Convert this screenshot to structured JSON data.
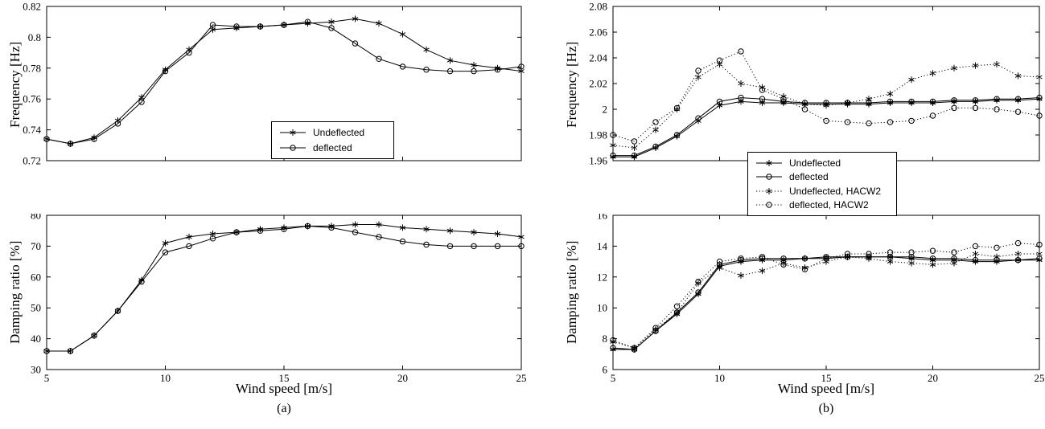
{
  "figure": {
    "caption_a": "(a)",
    "caption_b": "(b)"
  },
  "legends": {
    "a": {
      "items": [
        {
          "label": "Undeflected",
          "marker": "star",
          "line": "solid"
        },
        {
          "label": "deflected",
          "marker": "circle",
          "line": "solid"
        }
      ]
    },
    "b": {
      "items": [
        {
          "label": "Undeflected",
          "marker": "star",
          "line": "solid"
        },
        {
          "label": "deflected",
          "marker": "circle",
          "line": "solid"
        },
        {
          "label": "Undeflected, HACW2",
          "marker": "star",
          "line": "dotted"
        },
        {
          "label": "deflected, HACW2",
          "marker": "circle",
          "line": "dotted"
        }
      ]
    }
  },
  "chart_data": [
    {
      "id": "a-frequency",
      "type": "line",
      "title": "",
      "xlabel": "",
      "ylabel": "Frequency [Hz]",
      "xlim": [
        5,
        25
      ],
      "ylim": [
        0.72,
        0.82
      ],
      "xticks": [
        5,
        10,
        15,
        20,
        25
      ],
      "xticklabels": [
        "5",
        "10",
        "15",
        "20",
        "25"
      ],
      "yticks": [
        0.72,
        0.74,
        0.76,
        0.78,
        0.8,
        0.82
      ],
      "yticklabels": [
        "0.72",
        "0.74",
        "0.76",
        "0.78",
        "0.8",
        "0.82"
      ],
      "show_xticklabels": false,
      "grid": false,
      "x": [
        5,
        6,
        7,
        8,
        9,
        10,
        11,
        12,
        13,
        14,
        15,
        16,
        17,
        18,
        19,
        20,
        21,
        22,
        23,
        24,
        25
      ],
      "series": [
        {
          "name": "Undeflected",
          "marker": "star",
          "line": "solid",
          "values": [
            0.734,
            0.731,
            0.735,
            0.746,
            0.761,
            0.779,
            0.792,
            0.805,
            0.806,
            0.807,
            0.808,
            0.809,
            0.81,
            0.812,
            0.809,
            0.802,
            0.792,
            0.785,
            0.782,
            0.78,
            0.778
          ]
        },
        {
          "name": "deflected",
          "marker": "circle",
          "line": "solid",
          "values": [
            0.734,
            0.731,
            0.734,
            0.744,
            0.758,
            0.778,
            0.79,
            0.808,
            0.807,
            0.807,
            0.808,
            0.81,
            0.806,
            0.796,
            0.786,
            0.781,
            0.779,
            0.778,
            0.778,
            0.779,
            0.781
          ]
        }
      ]
    },
    {
      "id": "a-damping",
      "type": "line",
      "title": "",
      "xlabel": "Wind speed [m/s]",
      "ylabel": "Damping ratio [%]",
      "xlim": [
        5,
        25
      ],
      "ylim": [
        30,
        80
      ],
      "xticks": [
        5,
        10,
        15,
        20,
        25
      ],
      "xticklabels": [
        "5",
        "10",
        "15",
        "20",
        "25"
      ],
      "yticks": [
        30,
        40,
        50,
        60,
        70,
        80
      ],
      "yticklabels": [
        "30",
        "40",
        "50",
        "60",
        "70",
        "80"
      ],
      "show_xticklabels": true,
      "grid": false,
      "x": [
        5,
        6,
        7,
        8,
        9,
        10,
        11,
        12,
        13,
        14,
        15,
        16,
        17,
        18,
        19,
        20,
        21,
        22,
        23,
        24,
        25
      ],
      "series": [
        {
          "name": "Undeflected",
          "marker": "star",
          "line": "solid",
          "values": [
            36,
            36,
            41,
            49,
            59,
            71,
            73,
            74,
            74.5,
            75.5,
            76,
            76.5,
            76.5,
            77,
            77,
            76,
            75.5,
            75,
            74.5,
            74,
            73
          ]
        },
        {
          "name": "deflected",
          "marker": "circle",
          "line": "solid",
          "values": [
            36,
            36,
            41,
            49,
            58.5,
            68,
            70,
            72.5,
            74.5,
            75,
            75.5,
            76.5,
            76,
            74.5,
            73,
            71.5,
            70.5,
            70,
            70,
            70,
            70
          ]
        }
      ]
    },
    {
      "id": "b-frequency",
      "type": "line",
      "title": "",
      "xlabel": "",
      "ylabel": "Frequency [Hz]",
      "xlim": [
        5,
        25
      ],
      "ylim": [
        1.96,
        2.08
      ],
      "xticks": [
        5,
        10,
        15,
        20,
        25
      ],
      "xticklabels": [
        "5",
        "10",
        "15",
        "20",
        "25"
      ],
      "yticks": [
        1.96,
        1.98,
        2,
        2.02,
        2.04,
        2.06,
        2.08
      ],
      "yticklabels": [
        "1.96",
        "1.98",
        "2",
        "2.02",
        "2.04",
        "2.06",
        "2.08"
      ],
      "show_xticklabels": false,
      "grid": false,
      "x": [
        5,
        6,
        7,
        8,
        9,
        10,
        11,
        12,
        13,
        14,
        15,
        16,
        17,
        18,
        19,
        20,
        21,
        22,
        23,
        24,
        25
      ],
      "series": [
        {
          "name": "Undeflected",
          "marker": "star",
          "line": "solid",
          "values": [
            1.963,
            1.963,
            1.97,
            1.979,
            1.991,
            2.003,
            2.006,
            2.005,
            2.005,
            2.004,
            2.004,
            2.004,
            2.004,
            2.005,
            2.005,
            2.005,
            2.006,
            2.006,
            2.007,
            2.007,
            2.008
          ]
        },
        {
          "name": "deflected",
          "marker": "circle",
          "line": "solid",
          "values": [
            1.964,
            1.964,
            1.971,
            1.98,
            1.993,
            2.006,
            2.009,
            2.008,
            2.006,
            2.005,
            2.005,
            2.005,
            2.005,
            2.006,
            2.006,
            2.006,
            2.007,
            2.007,
            2.008,
            2.008,
            2.009
          ]
        },
        {
          "name": "Undeflected, HACW2",
          "marker": "star",
          "line": "dotted",
          "values": [
            1.972,
            1.97,
            1.984,
            2.0,
            2.025,
            2.035,
            2.02,
            2.017,
            2.01,
            2.004,
            2.003,
            2.005,
            2.008,
            2.012,
            2.023,
            2.028,
            2.032,
            2.034,
            2.035,
            2.026,
            2.025
          ]
        },
        {
          "name": "deflected, HACW2",
          "marker": "circle",
          "line": "dotted",
          "values": [
            1.98,
            1.975,
            1.99,
            2.001,
            2.03,
            2.038,
            2.045,
            2.015,
            2.008,
            2.0,
            1.991,
            1.99,
            1.989,
            1.99,
            1.991,
            1.995,
            2.001,
            2.001,
            2.0,
            1.998,
            1.995
          ]
        }
      ]
    },
    {
      "id": "b-damping",
      "type": "line",
      "title": "",
      "xlabel": "Wind speed [m/s]",
      "ylabel": "Damping ratio [%]",
      "xlim": [
        5,
        25
      ],
      "ylim": [
        6,
        16
      ],
      "xticks": [
        5,
        10,
        15,
        20,
        25
      ],
      "xticklabels": [
        "5",
        "10",
        "15",
        "20",
        "25"
      ],
      "yticks": [
        6,
        8,
        10,
        12,
        14,
        16
      ],
      "yticklabels": [
        "6",
        "8",
        "10",
        "12",
        "14",
        "16"
      ],
      "show_xticklabels": true,
      "grid": false,
      "x": [
        5,
        6,
        7,
        8,
        9,
        10,
        11,
        12,
        13,
        14,
        15,
        16,
        17,
        18,
        19,
        20,
        21,
        22,
        23,
        24,
        25
      ],
      "series": [
        {
          "name": "Undeflected",
          "marker": "star",
          "line": "solid",
          "values": [
            7.3,
            7.3,
            8.5,
            9.6,
            10.9,
            12.7,
            13.0,
            13.1,
            13.1,
            13.2,
            13.2,
            13.3,
            13.3,
            13.3,
            13.2,
            13.1,
            13.1,
            13.0,
            13.0,
            13.1,
            13.1
          ]
        },
        {
          "name": "deflected",
          "marker": "circle",
          "line": "solid",
          "values": [
            7.4,
            7.3,
            8.5,
            9.7,
            11.0,
            12.8,
            13.1,
            13.2,
            13.2,
            13.2,
            13.3,
            13.3,
            13.3,
            13.3,
            13.3,
            13.2,
            13.2,
            13.1,
            13.1,
            13.1,
            13.2
          ]
        },
        {
          "name": "Undeflected, HACW2",
          "marker": "star",
          "line": "dotted",
          "values": [
            7.8,
            7.4,
            8.6,
            9.7,
            11.6,
            12.6,
            12.1,
            12.4,
            12.9,
            12.6,
            13.0,
            13.3,
            13.2,
            13.0,
            12.9,
            12.8,
            12.9,
            13.5,
            13.3,
            13.5,
            13.5
          ]
        },
        {
          "name": "deflected, HACW2",
          "marker": "circle",
          "line": "dotted",
          "values": [
            7.9,
            7.4,
            8.7,
            10.1,
            11.7,
            13.0,
            13.2,
            13.3,
            12.8,
            12.5,
            13.2,
            13.5,
            13.5,
            13.6,
            13.6,
            13.7,
            13.6,
            14.0,
            13.9,
            14.2,
            14.1
          ]
        }
      ]
    }
  ]
}
